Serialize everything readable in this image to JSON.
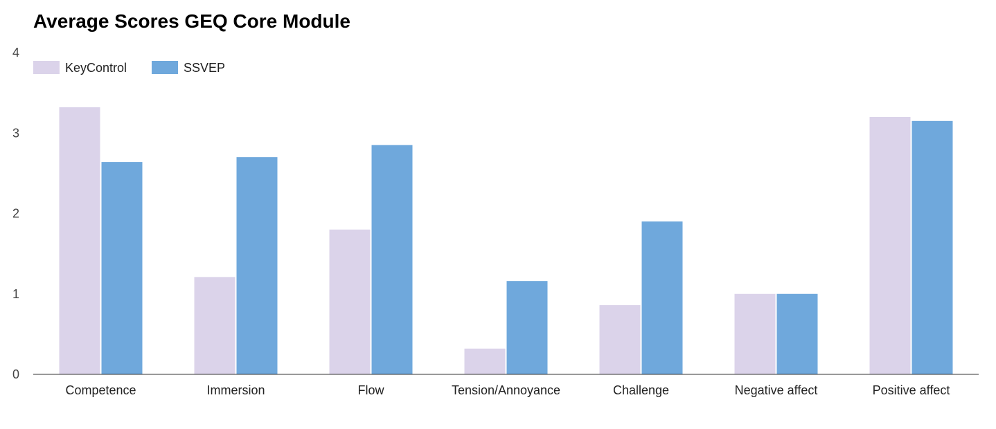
{
  "chart_data": {
    "type": "bar",
    "title": "Average Scores GEQ Core Module",
    "xlabel": "",
    "ylabel": "",
    "ylim": [
      0,
      4
    ],
    "yticks": [
      0,
      1,
      2,
      3,
      4
    ],
    "grid": false,
    "legend_position": "top-left",
    "categories": [
      "Competence",
      "Immersion",
      "Flow",
      "Tension/Annoyance",
      "Challenge",
      "Negative affect",
      "Positive affect"
    ],
    "series": [
      {
        "name": "KeyControl",
        "color": "#dbd3ea",
        "values": [
          3.32,
          1.21,
          1.8,
          0.32,
          0.86,
          1.0,
          3.2
        ]
      },
      {
        "name": "SSVEP",
        "color": "#6fa8dc",
        "values": [
          2.64,
          2.7,
          2.85,
          1.16,
          1.9,
          1.0,
          3.15
        ]
      }
    ]
  }
}
